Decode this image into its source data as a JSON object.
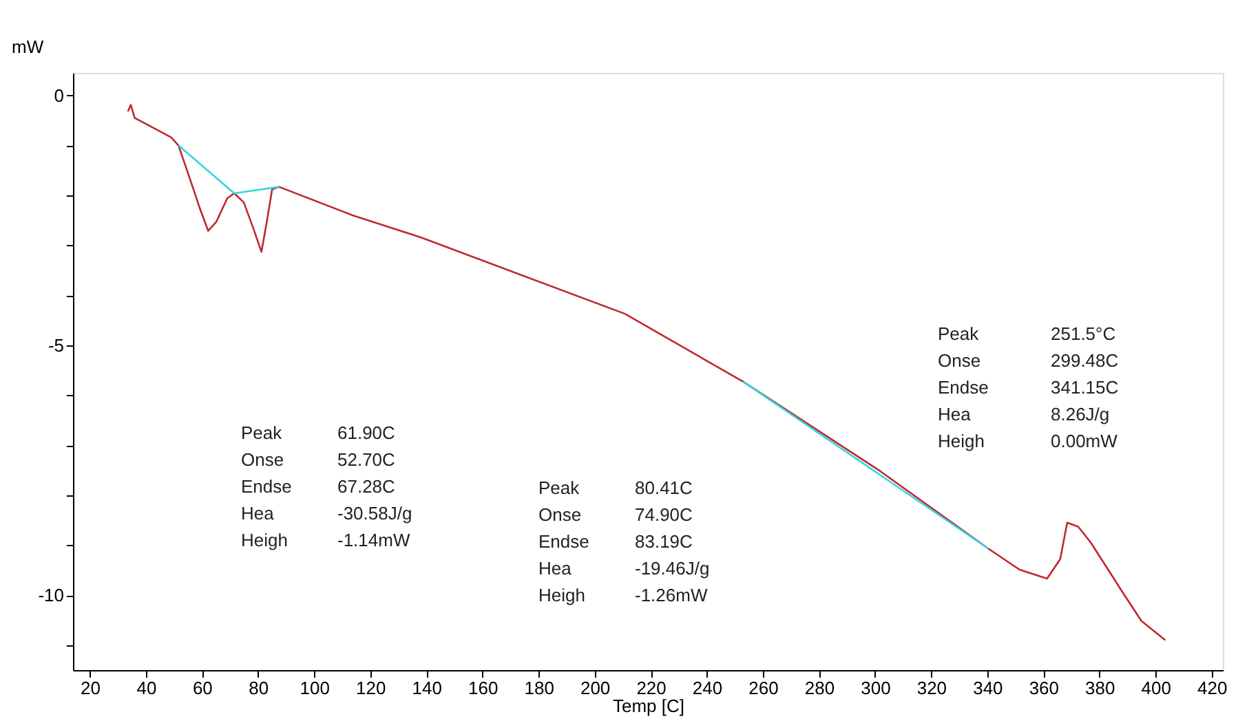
{
  "chart_data": {
    "type": "line",
    "xlabel": "Temp [C]",
    "ylabel": "mW",
    "xlim": [
      14,
      424
    ],
    "ylim": [
      -11.5,
      0.45
    ],
    "xticks": [
      20,
      40,
      60,
      80,
      100,
      120,
      140,
      160,
      180,
      200,
      220,
      240,
      260,
      280,
      300,
      320,
      340,
      360,
      380,
      400,
      420
    ],
    "yticks": [
      {
        "value": -11,
        "label": null
      },
      {
        "value": -10,
        "label": "-10"
      },
      {
        "value": -9,
        "label": null
      },
      {
        "value": -8,
        "label": null
      },
      {
        "value": -7,
        "label": null
      },
      {
        "value": -6,
        "label": null
      },
      {
        "value": -5,
        "label": "-5"
      },
      {
        "value": -4,
        "label": null
      },
      {
        "value": -3,
        "label": null
      },
      {
        "value": -2,
        "label": null
      },
      {
        "value": -1,
        "label": null
      },
      {
        "value": 0,
        "label": "0"
      }
    ],
    "grid": false,
    "marker": "none",
    "line_style": "solid",
    "series": [
      {
        "color": "#c0282d",
        "x": [
          33.6,
          34.6,
          36,
          49,
          51.6,
          55.4,
          59.3,
          62.2,
          65.1,
          69,
          71.5,
          74.9,
          78.3,
          81.2,
          83.1,
          85,
          87.5,
          113.7,
          138,
          210.8,
          253,
          301.6,
          340.4,
          351.5,
          361.3,
          366,
          368.5,
          372.4,
          376.8,
          380.7,
          388.9,
          395,
          403.5
        ],
        "values": [
          -0.32,
          -0.19,
          -0.45,
          -0.84,
          -1.0,
          -1.62,
          -2.27,
          -2.71,
          -2.53,
          -2.06,
          -1.96,
          -2.14,
          -2.66,
          -3.13,
          -2.53,
          -1.88,
          -1.83,
          -2.4,
          -2.84,
          -4.37,
          -5.73,
          -7.51,
          -9.07,
          -9.49,
          -9.67,
          -9.28,
          -8.55,
          -8.63,
          -8.94,
          -9.28,
          -10.0,
          -10.52,
          -10.9
        ]
      },
      {
        "color": "#33d6e0",
        "x": [
          51.6,
          71.5,
          87.5
        ],
        "values": [
          -1.0,
          -1.96,
          -1.83
        ]
      },
      {
        "color": "#33d6e0",
        "x": [
          253,
          340.4
        ],
        "values": [
          -5.73,
          -9.07
        ]
      }
    ],
    "annotations": [
      "Peak",
      "61.90C",
      "Onse",
      "52.70C",
      "Endse",
      "67.28C",
      "Hea",
      "-30.58J/g",
      "Heigh",
      "-1.14mW",
      "Peak",
      "80.41C",
      "Onse",
      "74.90C",
      "Endse",
      "83.19C",
      "Hea",
      "-19.46J/g",
      "Heigh",
      "-1.26mW",
      "Peak",
      "251.5°C",
      "Onse",
      "299.48C",
      "Endse",
      "341.15C",
      "Hea",
      "8.26J/g",
      "Heigh",
      "0.00mW"
    ]
  }
}
